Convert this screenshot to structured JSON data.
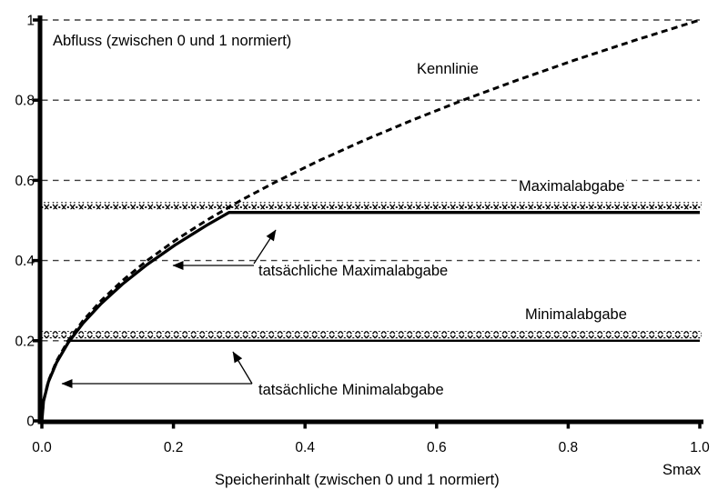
{
  "chart_data": {
    "type": "line",
    "title": "",
    "xlabel": "Speicherinhalt (zwischen 0 und 1 normiert)",
    "ylabel": "Abfluss (zwischen 0 und 1 normiert)",
    "x_axis_end_label": "Smax",
    "xlim": [
      0,
      1
    ],
    "ylim": [
      0,
      1
    ],
    "grid": "horizontal-dashed",
    "x_ticks": [
      "0.0",
      "0.2",
      "0.4",
      "0.6",
      "0.8",
      "1.0"
    ],
    "x_tick_values": [
      0,
      0.2,
      0.4,
      0.6,
      0.8,
      1.0
    ],
    "y_ticks": [
      "0",
      "0.2",
      "0.4",
      "0.6",
      "0.8",
      "1"
    ],
    "y_tick_values": [
      0,
      0.2,
      0.4,
      0.6,
      0.8,
      1.0
    ],
    "series": [
      {
        "name": "Kennlinie",
        "style": "dashed",
        "points": [
          [
            0,
            0
          ],
          [
            0.0025,
            0.05
          ],
          [
            0.01,
            0.1
          ],
          [
            0.0225,
            0.15
          ],
          [
            0.04,
            0.2
          ],
          [
            0.0625,
            0.25
          ],
          [
            0.09,
            0.3
          ],
          [
            0.1225,
            0.35
          ],
          [
            0.16,
            0.4
          ],
          [
            0.2025,
            0.45
          ],
          [
            0.25,
            0.5
          ],
          [
            0.3025,
            0.55
          ],
          [
            0.36,
            0.6
          ],
          [
            0.4225,
            0.65
          ],
          [
            0.49,
            0.7
          ],
          [
            0.5625,
            0.75
          ],
          [
            0.64,
            0.8
          ],
          [
            0.7225,
            0.85
          ],
          [
            0.81,
            0.9
          ],
          [
            0.9025,
            0.95
          ],
          [
            1,
            1
          ]
        ]
      },
      {
        "name": "Maximalabgabe",
        "style": "crosshatch-horizontal",
        "value": 0.537
      },
      {
        "name": "tatsächliche Maximalabgabe",
        "style": "solid",
        "cap_value": 0.52,
        "points": [
          [
            0,
            0
          ],
          [
            0.0025,
            0.0488
          ],
          [
            0.01,
            0.0975
          ],
          [
            0.0225,
            0.1463
          ],
          [
            0.04,
            0.195
          ],
          [
            0.0625,
            0.2438
          ],
          [
            0.09,
            0.2925
          ],
          [
            0.1225,
            0.3413
          ],
          [
            0.16,
            0.39
          ],
          [
            0.2025,
            0.4388
          ],
          [
            0.25,
            0.4875
          ],
          [
            0.2845,
            0.52
          ],
          [
            1,
            0.52
          ]
        ]
      },
      {
        "name": "Minimalabgabe",
        "style": "crosshatch-horizontal",
        "value": 0.215
      },
      {
        "name": "tatsächliche Minimalabgabe",
        "style": "solid",
        "cap_value": 0.2,
        "points": [
          [
            0,
            0
          ],
          [
            0.0025,
            0.0488
          ],
          [
            0.01,
            0.0975
          ],
          [
            0.0225,
            0.1463
          ],
          [
            0.0421,
            0.2
          ],
          [
            1,
            0.2
          ]
        ]
      }
    ],
    "annotation_arrows": [
      {
        "from": [
          279,
          292
        ],
        "to": [
          190,
          292
        ]
      },
      {
        "from": [
          279,
          290
        ],
        "to": [
          303,
          253
        ]
      },
      {
        "from": [
          277,
          422
        ],
        "to": [
          68,
          422
        ]
      },
      {
        "from": [
          277,
          422
        ],
        "to": [
          256,
          387
        ]
      }
    ],
    "colors": {
      "foreground": "#000000",
      "background": "#ffffff",
      "gridline": "#3d3d3d"
    }
  }
}
